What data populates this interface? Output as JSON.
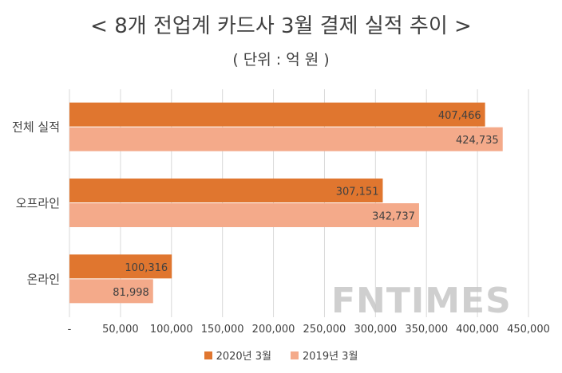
{
  "chart_data": {
    "type": "bar",
    "orientation": "horizontal",
    "title": "< 8개 전업계 카드사 3월 결제 실적 추이 >",
    "subtitle": "( 단위 : 억 원 )",
    "categories": [
      "전체 실적",
      "오프라인",
      "온라인"
    ],
    "series": [
      {
        "name": "2020년 3월",
        "color": "#e0762f",
        "values": [
          407466,
          307151,
          100316
        ],
        "labels": [
          "407,466",
          "307,151",
          "100,316"
        ]
      },
      {
        "name": "2019년 3월",
        "color": "#f4aa8a",
        "values": [
          424735,
          342737,
          81998
        ],
        "labels": [
          "424,735",
          "342,737",
          "81,998"
        ]
      }
    ],
    "xlim": [
      0,
      450000
    ],
    "xticks": [
      0,
      50000,
      100000,
      150000,
      200000,
      250000,
      300000,
      350000,
      400000,
      450000
    ],
    "xtick_labels": [
      "-",
      "50,000",
      "100,000",
      "150,000",
      "200,000",
      "250,000",
      "300,000",
      "350,000",
      "400,000",
      "450,000"
    ],
    "grid": true,
    "legend_position": "bottom"
  },
  "watermark": "FNTIMES"
}
